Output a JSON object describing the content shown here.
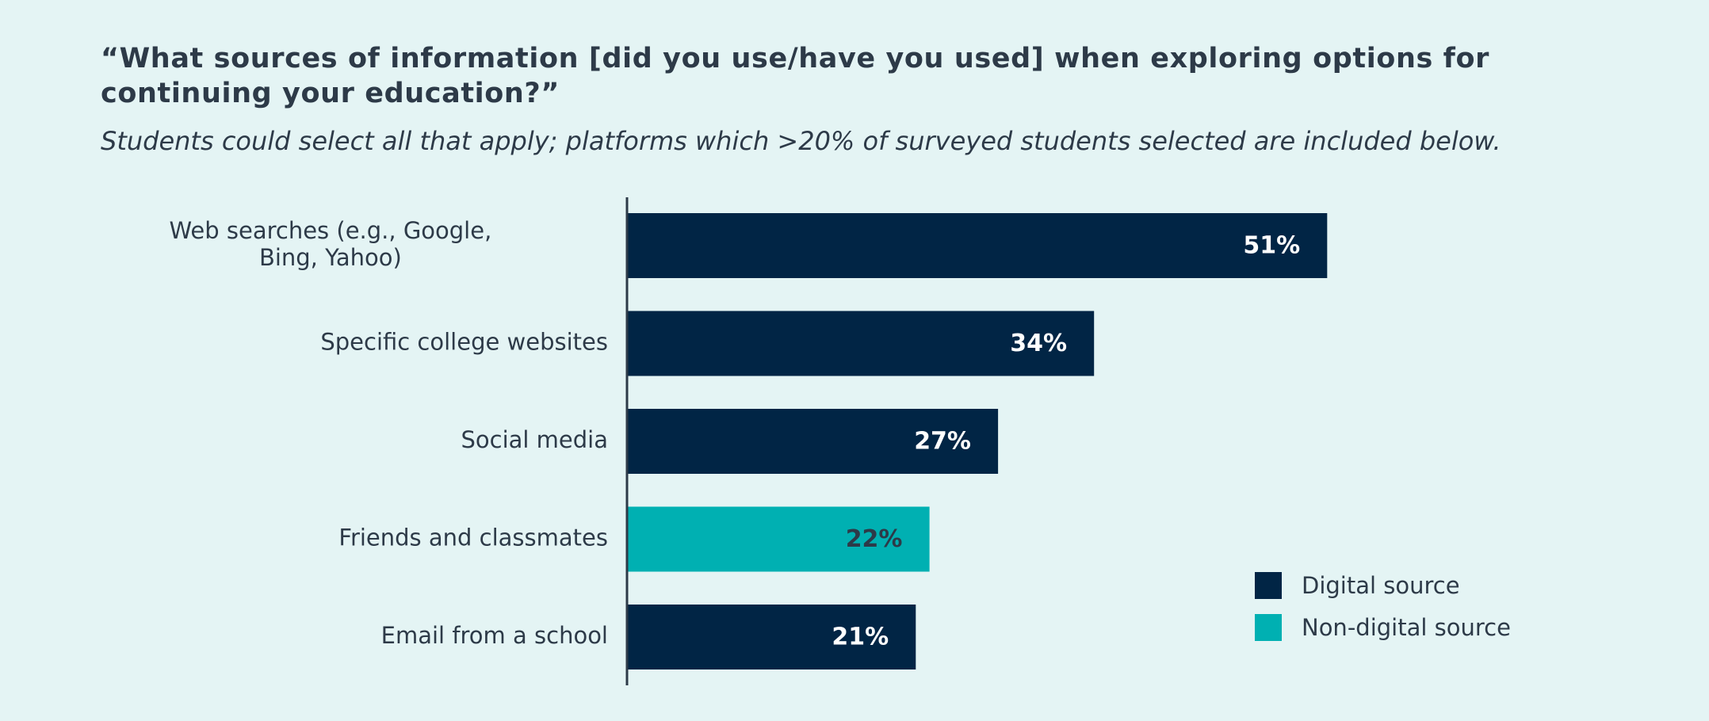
{
  "colors": {
    "background": "#e4f4f4",
    "digital": "#012545",
    "non_digital": "#00b0b2",
    "text": "#2d3a48",
    "axis": "#2d3a48"
  },
  "chart_data": {
    "type": "bar",
    "orientation": "horizontal",
    "title": "“What sources of information [did you use/have you used] when exploring options for continuing your education?”",
    "subtitle": "Students could select all that apply; platforms which >20% of surveyed students selected are included below.",
    "xlabel": "",
    "ylabel": "",
    "xlim": [
      0,
      60
    ],
    "grid": false,
    "legend_position": "bottom-right",
    "categories": [
      [
        "Web searches (e.g., Google,",
        "Bing, Yahoo)"
      ],
      [
        "Specific college websites"
      ],
      [
        "Social media"
      ],
      [
        "Friends and classmates"
      ],
      [
        "Email from a school"
      ]
    ],
    "values": [
      51,
      34,
      27,
      22,
      21
    ],
    "value_labels": [
      "51%",
      "34%",
      "27%",
      "22%",
      "21%"
    ],
    "source_type": [
      "digital",
      "digital",
      "digital",
      "non_digital",
      "digital"
    ],
    "legend": [
      {
        "key": "digital",
        "label": "Digital source"
      },
      {
        "key": "non_digital",
        "label": "Non-digital source"
      }
    ]
  }
}
